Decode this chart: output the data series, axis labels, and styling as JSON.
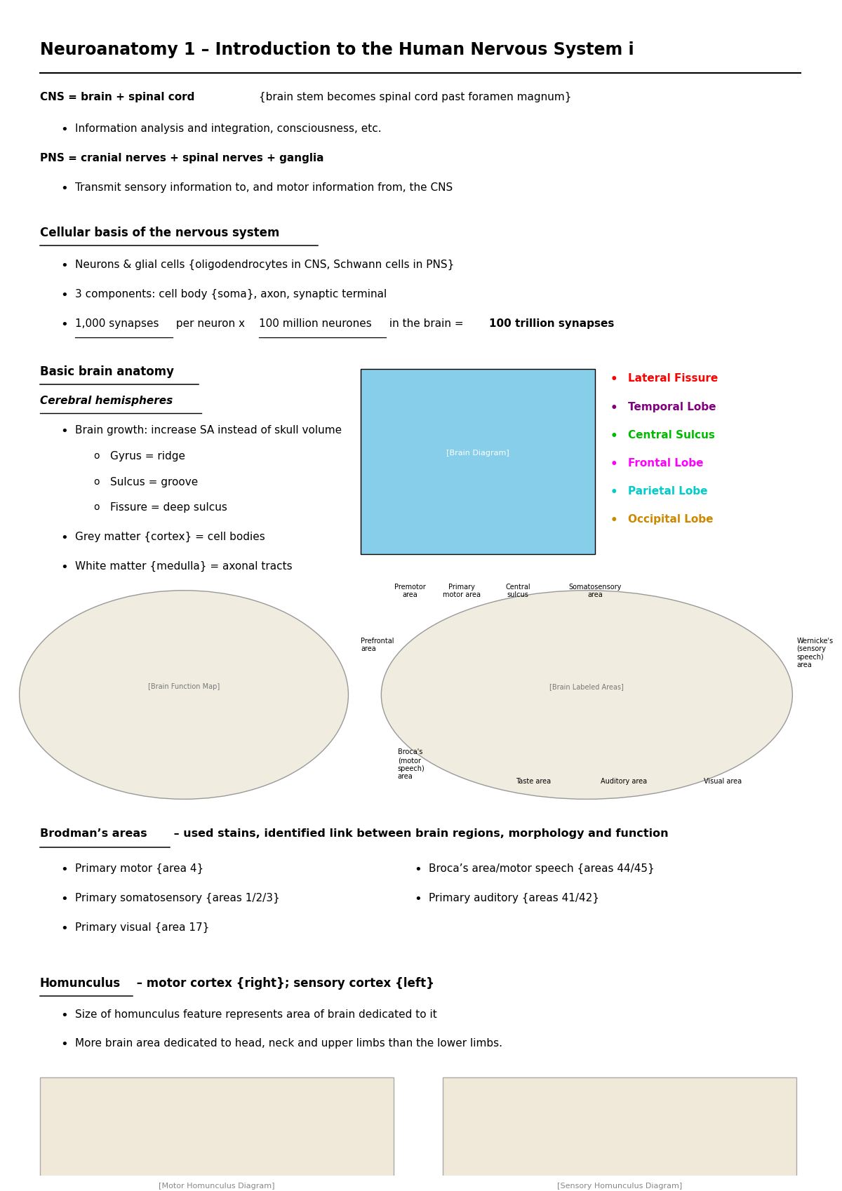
{
  "title": "Neuroanatomy 1 – Introduction to the Human Nervous System i",
  "bg_color": "#ffffff",
  "text_color": "#000000",
  "page_width": 12.0,
  "page_height": 16.98,
  "legend_items": [
    {
      "color": "#ff0000",
      "text": "Lateral Fissure"
    },
    {
      "color": "#800080",
      "text": "Temporal Lobe"
    },
    {
      "color": "#00bb00",
      "text": "Central Sulcus"
    },
    {
      "color": "#ff00ff",
      "text": "Frontal Lobe"
    },
    {
      "color": "#00cccc",
      "text": "Parietal Lobe"
    },
    {
      "color": "#cc8800",
      "text": "Occipital Lobe"
    }
  ]
}
